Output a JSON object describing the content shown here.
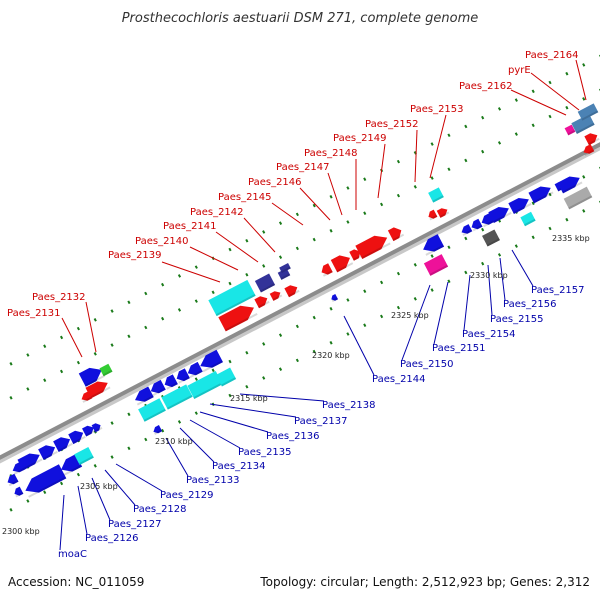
{
  "title": "Prosthecochloris aestuarii DSM 271, complete genome",
  "footer": {
    "accession": "Accession: NC_011059",
    "topology": "Topology: circular; Length: 2,512,923 bp; Genes: 2,312"
  },
  "colors": {
    "top_label": "#cc0000",
    "bottom_label": "#0000aa",
    "backbone": "#8c8c8c",
    "tick": "#1a7a1a",
    "blue": "#1010dd",
    "red": "#ee1111",
    "cyan": "#19e6e6",
    "navy": "#333399",
    "magenta": "#ee1199",
    "green": "#33cc33",
    "gray": "#aaaaaa",
    "steel": "#4b82b4",
    "darkgray": "#555555"
  },
  "kbp_labels": [
    "2300 kbp",
    "2305 kbp",
    "2310 kbp",
    "2315 kbp",
    "2320 kbp",
    "2325 kbp",
    "2330 kbp",
    "2335 kbp"
  ],
  "top_labels": [
    "Paes_2131",
    "Paes_2132",
    "Paes_2139",
    "Paes_2140",
    "Paes_2141",
    "Paes_2142",
    "Paes_2145",
    "Paes_2146",
    "Paes_2147",
    "Paes_2148",
    "Paes_2149",
    "Paes_2152",
    "Paes_2153",
    "Paes_2162",
    "pyrE",
    "Paes_2164"
  ],
  "bottom_labels": [
    "moaC",
    "Paes_2126",
    "Paes_2127",
    "Paes_2128",
    "Paes_2129",
    "Paes_2133",
    "Paes_2134",
    "Paes_2135",
    "Paes_2136",
    "Paes_2137",
    "Paes_2138",
    "Paes_2144",
    "Paes_2150",
    "Paes_2151",
    "Paes_2154",
    "Paes_2155",
    "Paes_2156",
    "Paes_2157"
  ]
}
